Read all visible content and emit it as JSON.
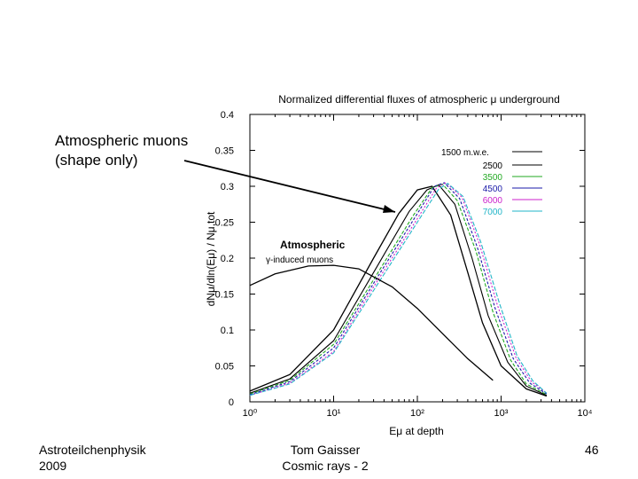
{
  "slide": {
    "note": "Atmospheric muons\n(shape only)",
    "footer_left": "Astroteilchenphysik\n2009",
    "footer_center": "Tom Gaisser\nCosmic rays - 2",
    "page_number": "46"
  },
  "chart_data": {
    "type": "line",
    "title": "Normalized differential fluxes of atmospheric μ underground",
    "xlabel": "Eμ at depth",
    "ylabel": "dNμ/dln(Eμ) / Nμ,tot",
    "xscale": "log",
    "xlim": [
      1,
      10000
    ],
    "ylim": [
      0,
      0.4
    ],
    "xticks": [
      1,
      10,
      100,
      1000,
      10000
    ],
    "xtick_labels": [
      "10⁰",
      "10¹",
      "10²",
      "10³",
      "10⁴"
    ],
    "yticks": [
      0,
      0.05,
      0.1,
      0.15,
      0.2,
      0.25,
      0.3,
      0.35,
      0.4
    ],
    "ytick_labels": [
      "0",
      "0.05",
      "0.1",
      "0.15",
      "0.2",
      "0.25",
      "0.3",
      "0.35",
      "0.4"
    ],
    "legend": {
      "title": "1500 m.w.e.",
      "placement": "top-right",
      "entries": [
        {
          "label": "2500",
          "color": "#000000"
        },
        {
          "label": "3500",
          "color": "#22aa22"
        },
        {
          "label": "4500",
          "color": "#1a1aa8"
        },
        {
          "label": "6000",
          "color": "#cc22cc"
        },
        {
          "label": "7000",
          "color": "#22b5c8"
        }
      ]
    },
    "annotations": {
      "atmospheric_title": "Atmospheric",
      "atmospheric_sub": "γ-induced muons"
    },
    "series": [
      {
        "label": "1500 m.w.e.",
        "color": "#000000",
        "x": [
          1,
          3,
          10,
          30,
          60,
          100,
          150,
          250,
          400,
          600,
          1000,
          2000,
          3500
        ],
        "y": [
          0.015,
          0.038,
          0.1,
          0.2,
          0.262,
          0.295,
          0.3,
          0.26,
          0.18,
          0.11,
          0.05,
          0.018,
          0.008
        ]
      },
      {
        "label": "2500",
        "color": "#000000",
        "x": [
          1,
          3,
          10,
          30,
          80,
          130,
          180,
          280,
          450,
          700,
          1200,
          2000,
          3500
        ],
        "y": [
          0.012,
          0.032,
          0.085,
          0.18,
          0.265,
          0.295,
          0.302,
          0.275,
          0.2,
          0.12,
          0.055,
          0.022,
          0.009
        ]
      },
      {
        "label": "3500",
        "color": "#22aa22",
        "x": [
          1,
          3,
          10,
          30,
          90,
          150,
          200,
          300,
          500,
          800,
          1300,
          2000,
          3500
        ],
        "y": [
          0.011,
          0.03,
          0.08,
          0.17,
          0.26,
          0.298,
          0.303,
          0.28,
          0.21,
          0.125,
          0.058,
          0.025,
          0.01
        ]
      },
      {
        "label": "4500",
        "color": "#1a1aa8",
        "x": [
          1,
          3,
          10,
          30,
          100,
          160,
          210,
          320,
          520,
          850,
          1400,
          2200,
          3500
        ],
        "y": [
          0.01,
          0.028,
          0.075,
          0.165,
          0.262,
          0.3,
          0.305,
          0.283,
          0.215,
          0.13,
          0.06,
          0.026,
          0.011
        ]
      },
      {
        "label": "6000",
        "color": "#cc22cc",
        "x": [
          1,
          3,
          10,
          30,
          100,
          170,
          220,
          340,
          550,
          900,
          1500,
          2300,
          3500
        ],
        "y": [
          0.009,
          0.026,
          0.07,
          0.16,
          0.255,
          0.298,
          0.305,
          0.285,
          0.22,
          0.135,
          0.062,
          0.028,
          0.012
        ]
      },
      {
        "label": "7000",
        "color": "#22b5c8",
        "x": [
          1,
          3,
          10,
          30,
          100,
          180,
          230,
          350,
          570,
          950,
          1550,
          2400,
          3500
        ],
        "y": [
          0.009,
          0.025,
          0.068,
          0.155,
          0.25,
          0.296,
          0.304,
          0.286,
          0.223,
          0.138,
          0.064,
          0.029,
          0.012
        ]
      },
      {
        "label": "Atmospheric γ-induced muons",
        "color": "#000000",
        "x": [
          1,
          2,
          5,
          10,
          20,
          50,
          100,
          200,
          400,
          800
        ],
        "y": [
          0.162,
          0.178,
          0.189,
          0.19,
          0.185,
          0.16,
          0.13,
          0.095,
          0.06,
          0.03
        ]
      }
    ]
  }
}
